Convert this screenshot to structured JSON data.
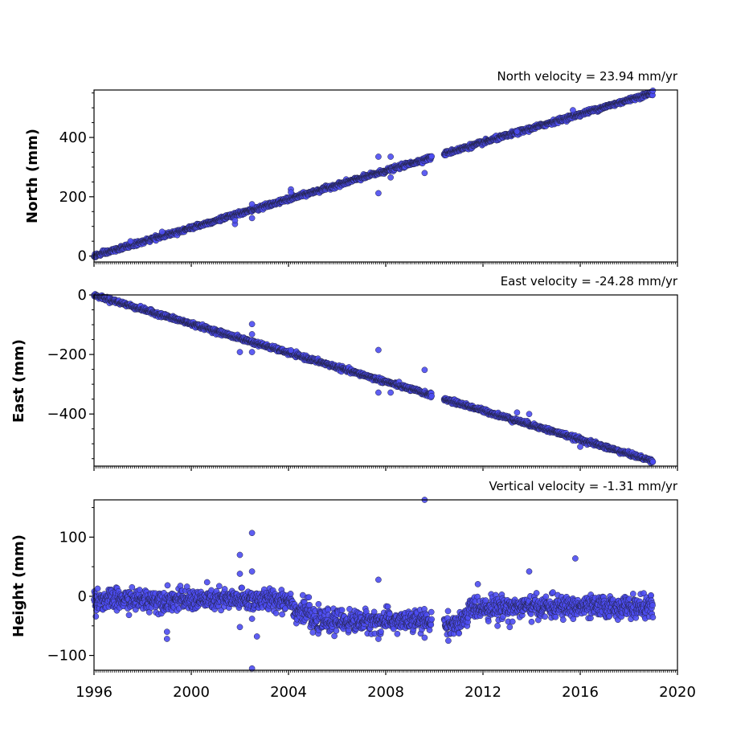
{
  "chart_data": [
    {
      "type": "scatter",
      "title": "North velocity = 23.94 mm/yr",
      "xlabel": "",
      "ylabel": "North (mm)",
      "xlim": [
        1996,
        2020
      ],
      "ylim": [
        -20,
        560
      ],
      "yticks": [
        0,
        200,
        400
      ],
      "ytick_labels": [
        "0",
        "200",
        "400"
      ],
      "grid": false,
      "velocity_mm_per_yr": 23.94,
      "trend": {
        "x0": 1996,
        "y0": 0
      },
      "data_range": [
        1996,
        2019
      ],
      "gap": [
        2009.9,
        2010.4
      ],
      "scatter_sd": 3.5,
      "outliers": [
        [
          1997.5,
          50
        ],
        [
          1998.8,
          82
        ],
        [
          2001.8,
          108
        ],
        [
          2001.8,
          120
        ],
        [
          2002.5,
          128
        ],
        [
          2002.5,
          175
        ],
        [
          2004.1,
          225
        ],
        [
          2004.1,
          215
        ],
        [
          2007.7,
          335
        ],
        [
          2007.7,
          212
        ],
        [
          2008.2,
          335
        ],
        [
          2008.2,
          265
        ],
        [
          2009.6,
          280
        ],
        [
          2013.4,
          420
        ],
        [
          2015.7,
          492
        ]
      ],
      "colors": {
        "fill": "#4d4df2",
        "stroke": "#222244"
      }
    },
    {
      "type": "scatter",
      "title": "East velocity = -24.28 mm/yr",
      "xlabel": "",
      "ylabel": "East (mm)",
      "xlim": [
        1996,
        2020
      ],
      "ylim": [
        -575,
        0
      ],
      "yticks": [
        0,
        -200,
        -400
      ],
      "ytick_labels": [
        "0",
        "−200",
        "−400"
      ],
      "grid": false,
      "velocity_mm_per_yr": -24.28,
      "trend": {
        "x0": 1996,
        "y0": 0
      },
      "data_range": [
        1996,
        2019
      ],
      "gap": [
        2009.9,
        2010.4
      ],
      "scatter_sd": 3.5,
      "outliers": [
        [
          2002.0,
          -192
        ],
        [
          2002.5,
          -98
        ],
        [
          2002.5,
          -132
        ],
        [
          2002.5,
          -192
        ],
        [
          2004.1,
          -186
        ],
        [
          2007.7,
          -185
        ],
        [
          2007.7,
          -328
        ],
        [
          2008.2,
          -328
        ],
        [
          2009.6,
          -252
        ],
        [
          2013.4,
          -395
        ],
        [
          2013.9,
          -400
        ],
        [
          2016.0,
          -510
        ]
      ],
      "colors": {
        "fill": "#4d4df2",
        "stroke": "#222244"
      }
    },
    {
      "type": "scatter",
      "title": "Vertical velocity = -1.31 mm/yr",
      "xlabel": "",
      "ylabel": "Height (mm)",
      "xlim": [
        1996,
        2020
      ],
      "ylim": [
        -125,
        163
      ],
      "yticks": [
        100,
        0,
        -100
      ],
      "ytick_labels": [
        "100",
        "0",
        "−100"
      ],
      "xticks": [
        1996,
        2000,
        2004,
        2008,
        2012,
        2016,
        2020
      ],
      "xtick_labels": [
        "1996",
        "2000",
        "2004",
        "2008",
        "2012",
        "2016",
        "2020"
      ],
      "grid": false,
      "velocity_mm_per_yr": -1.31,
      "segments": [
        {
          "from": 1996.0,
          "to": 2004.2,
          "mean": -6
        },
        {
          "from": 2004.2,
          "to": 2004.9,
          "mean": -25
        },
        {
          "from": 2004.9,
          "to": 2009.9,
          "mean": -42
        },
        {
          "from": 2010.4,
          "to": 2011.1,
          "mean": -48
        },
        {
          "from": 2011.1,
          "to": 2011.4,
          "mean": -40
        },
        {
          "from": 2011.4,
          "to": 2019.0,
          "mean": -18
        }
      ],
      "gap": [
        2009.9,
        2010.4
      ],
      "scatter_sd": 9,
      "outliers": [
        [
          1999.0,
          -60
        ],
        [
          1999.0,
          -72
        ],
        [
          2002.0,
          70
        ],
        [
          2002.0,
          38
        ],
        [
          2002.0,
          -52
        ],
        [
          2002.5,
          107
        ],
        [
          2002.5,
          42
        ],
        [
          2002.5,
          -38
        ],
        [
          2002.5,
          -122
        ],
        [
          2002.7,
          -68
        ],
        [
          2007.7,
          28
        ],
        [
          2007.7,
          -72
        ],
        [
          2009.6,
          163
        ],
        [
          2009.6,
          -70
        ],
        [
          2012.6,
          -50
        ],
        [
          2013.1,
          -52
        ],
        [
          2013.9,
          42
        ],
        [
          2015.8,
          64
        ]
      ],
      "colors": {
        "fill": "#4d4df2",
        "stroke": "#222244"
      }
    }
  ]
}
